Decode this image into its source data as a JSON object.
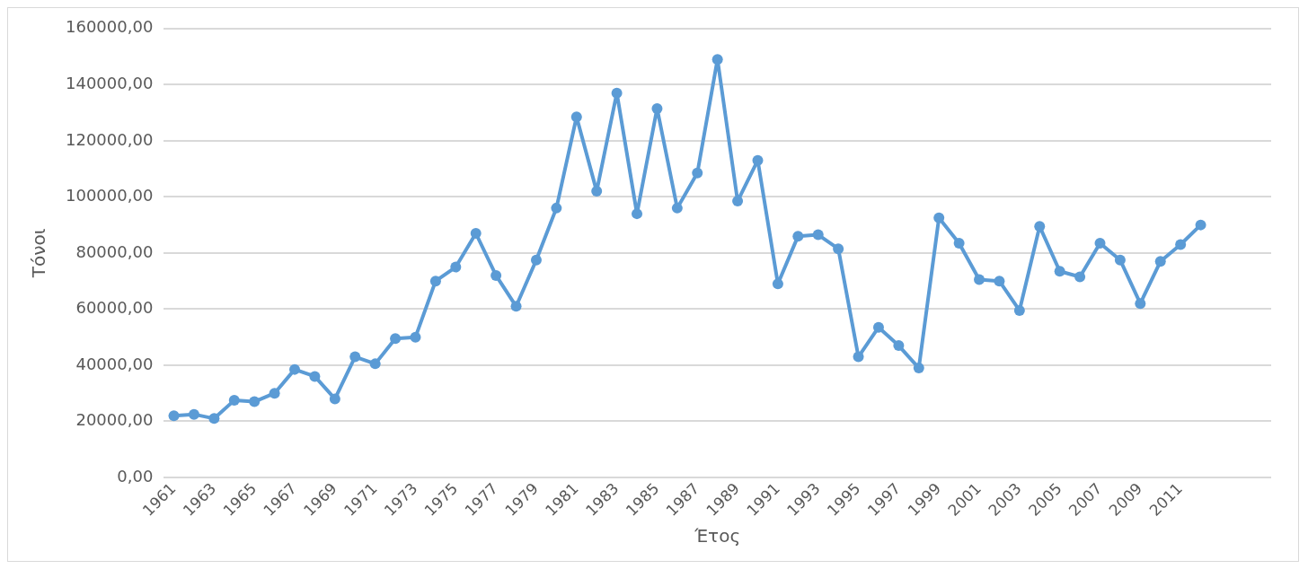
{
  "chart_data": {
    "type": "line",
    "xlabel": "Έτος",
    "ylabel": "Τόνοι",
    "categories": [
      "1961",
      null,
      "1963",
      null,
      "1965",
      null,
      "1967",
      null,
      "1969",
      null,
      "1971",
      null,
      "1973",
      null,
      "1975",
      null,
      "1977",
      null,
      "1979",
      null,
      "1981",
      null,
      "1983",
      null,
      "1985",
      null,
      "1987",
      null,
      "1989",
      null,
      "1991",
      null,
      "1993",
      null,
      "1995",
      null,
      "1997",
      null,
      "1999",
      null,
      "2001",
      null,
      "2003",
      null,
      "2005",
      null,
      "2007",
      null,
      "2009",
      null,
      "2011",
      null,
      null,
      null,
      null
    ],
    "series": [
      {
        "color": "#5b9bd5",
        "values": [
          22000,
          22500,
          21000,
          27500,
          27000,
          30000,
          38500,
          36000,
          28000,
          43000,
          40500,
          49500,
          50000,
          70000,
          75000,
          87000,
          72000,
          61000,
          77500,
          96000,
          128500,
          102000,
          137000,
          94000,
          131500,
          96000,
          108500,
          149000,
          98500,
          113000,
          69000,
          86000,
          86500,
          81500,
          43000,
          53500,
          47000,
          39000,
          92500,
          83500,
          70500,
          70000,
          59500,
          89500,
          73500,
          71500,
          83500,
          77500,
          62000,
          77000,
          83000,
          90000,
          null,
          null,
          null
        ]
      }
    ],
    "ylim": [
      0,
      160000
    ],
    "yticks": [
      {
        "value": 0,
        "label": "0,00"
      },
      {
        "value": 20000,
        "label": "20000,00"
      },
      {
        "value": 40000,
        "label": "40000,00"
      },
      {
        "value": 60000,
        "label": "60000,00"
      },
      {
        "value": 80000,
        "label": "80000,00"
      },
      {
        "value": 100000,
        "label": "100000,00"
      },
      {
        "value": 120000,
        "label": "120000,00"
      },
      {
        "value": 140000,
        "label": "140000,00"
      },
      {
        "value": 160000,
        "label": "160000,00"
      }
    ],
    "grid": "y",
    "legend": false,
    "marker": "circle",
    "line_style": "solid"
  }
}
